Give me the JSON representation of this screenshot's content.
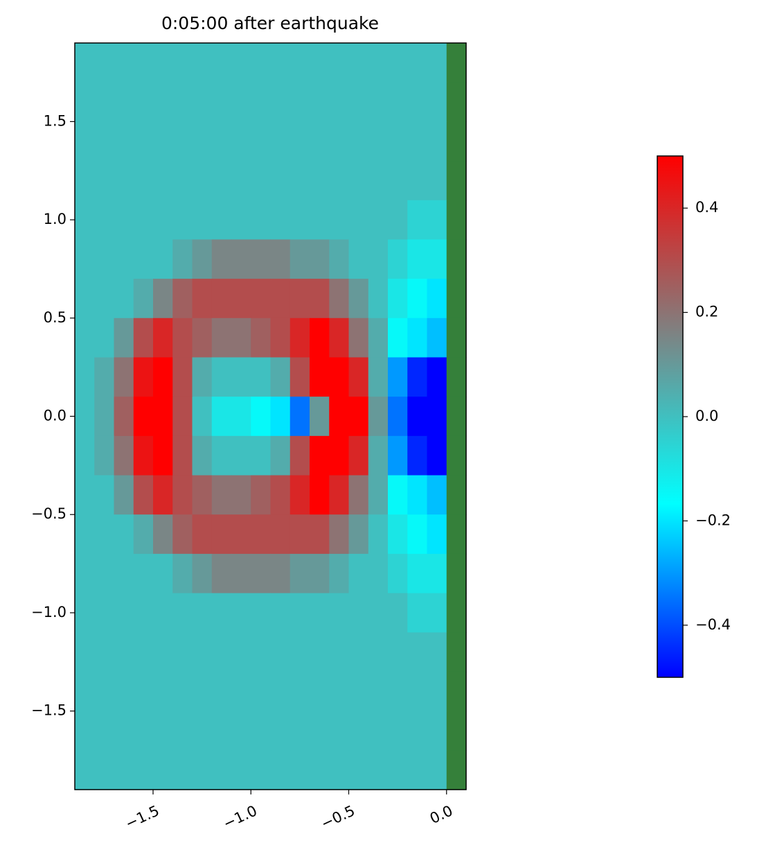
{
  "chart_data": {
    "type": "heatmap",
    "title": "0:05:00 after earthquake",
    "x": [
      -1.85,
      -1.75,
      -1.65,
      -1.55,
      -1.45,
      -1.35,
      -1.25,
      -1.15,
      -1.05,
      -0.95,
      -0.85,
      -0.75,
      -0.65,
      -0.55,
      -0.45,
      -0.35,
      -0.25,
      -0.15,
      -0.05,
      0.05
    ],
    "y": [
      1.8,
      1.6,
      1.4,
      1.2,
      1.0,
      0.8,
      0.6,
      0.4,
      0.2,
      0,
      -0.2,
      -0.4,
      -0.6,
      -0.8,
      -1.0,
      -1.2,
      -1.4,
      -1.6,
      -1.8
    ],
    "z": [
      [
        0,
        0,
        0,
        0,
        0,
        0,
        0,
        0,
        0,
        0,
        0,
        0,
        0,
        0,
        0,
        0,
        0,
        0,
        0,
        null
      ],
      [
        0,
        0,
        0,
        0,
        0,
        0,
        0,
        0,
        0,
        0,
        0,
        0,
        0,
        0,
        0,
        0,
        0,
        0,
        0,
        null
      ],
      [
        0,
        0,
        0,
        0,
        0,
        0,
        0,
        0,
        0,
        0,
        0,
        0,
        0,
        0,
        0,
        0,
        0,
        0,
        0,
        null
      ],
      [
        0,
        0,
        0,
        0,
        0,
        0,
        0,
        0,
        0,
        0,
        0,
        0,
        0,
        0,
        0,
        0,
        0,
        0,
        0,
        null
      ],
      [
        0,
        0,
        0,
        0,
        0,
        0,
        0,
        0,
        0,
        0,
        0,
        0,
        0,
        0,
        0,
        0,
        0,
        -0.05,
        -0.05,
        null
      ],
      [
        0,
        0,
        0,
        0,
        0,
        0.05,
        0.1,
        0.15,
        0.15,
        0.15,
        0.15,
        0.1,
        0.1,
        0.05,
        0,
        0,
        -0.05,
        -0.1,
        -0.1,
        null
      ],
      [
        0,
        0,
        0,
        0.05,
        0.15,
        0.25,
        0.3,
        0.3,
        0.3,
        0.3,
        0.3,
        0.3,
        0.3,
        0.2,
        0.1,
        0,
        -0.1,
        -0.15,
        -0.2,
        null
      ],
      [
        0,
        0,
        0.1,
        0.3,
        0.4,
        0.3,
        0.25,
        0.2,
        0.2,
        0.25,
        0.3,
        0.4,
        0.5,
        0.4,
        0.2,
        0.05,
        -0.15,
        -0.2,
        -0.25,
        null
      ],
      [
        0,
        0.05,
        0.2,
        0.45,
        0.5,
        0.3,
        0.05,
        0,
        0,
        0,
        0.05,
        0.3,
        0.5,
        0.5,
        0.4,
        0.05,
        -0.3,
        -0.45,
        -0.5,
        null
      ],
      [
        0,
        0.05,
        0.25,
        0.5,
        0.5,
        0.3,
        0,
        -0.1,
        -0.1,
        -0.15,
        -0.2,
        -0.35,
        0.1,
        0.5,
        0.5,
        0.1,
        -0.35,
        -0.5,
        -0.5,
        null
      ],
      [
        0,
        0.05,
        0.2,
        0.45,
        0.5,
        0.3,
        0.05,
        0,
        0,
        0,
        0.05,
        0.3,
        0.5,
        0.5,
        0.4,
        0.05,
        -0.3,
        -0.45,
        -0.5,
        null
      ],
      [
        0,
        0,
        0.1,
        0.3,
        0.4,
        0.3,
        0.25,
        0.2,
        0.2,
        0.25,
        0.3,
        0.4,
        0.5,
        0.4,
        0.2,
        0.05,
        -0.15,
        -0.2,
        -0.25,
        null
      ],
      [
        0,
        0,
        0,
        0.05,
        0.15,
        0.25,
        0.3,
        0.3,
        0.3,
        0.3,
        0.3,
        0.3,
        0.3,
        0.2,
        0.1,
        0,
        -0.1,
        -0.15,
        -0.2,
        null
      ],
      [
        0,
        0,
        0,
        0,
        0,
        0.05,
        0.1,
        0.15,
        0.15,
        0.15,
        0.15,
        0.1,
        0.1,
        0.05,
        0,
        0,
        -0.05,
        -0.1,
        -0.1,
        null
      ],
      [
        0,
        0,
        0,
        0,
        0,
        0,
        0,
        0,
        0,
        0,
        0,
        0,
        0,
        0,
        0,
        0,
        0,
        -0.05,
        -0.05,
        null
      ],
      [
        0,
        0,
        0,
        0,
        0,
        0,
        0,
        0,
        0,
        0,
        0,
        0,
        0,
        0,
        0,
        0,
        0,
        0,
        0,
        null
      ],
      [
        0,
        0,
        0,
        0,
        0,
        0,
        0,
        0,
        0,
        0,
        0,
        0,
        0,
        0,
        0,
        0,
        0,
        0,
        0,
        null
      ],
      [
        0,
        0,
        0,
        0,
        0,
        0,
        0,
        0,
        0,
        0,
        0,
        0,
        0,
        0,
        0,
        0,
        0,
        0,
        0,
        null
      ],
      [
        0,
        0,
        0,
        0,
        0,
        0,
        0,
        0,
        0,
        0,
        0,
        0,
        0,
        0,
        0,
        0,
        0,
        0,
        0,
        null
      ]
    ],
    "colormap": [
      "#0000ff",
      "#00ffff",
      "#808080",
      "#ff0000"
    ],
    "null_color": "#35803a",
    "clim": [
      -0.5,
      0.5
    ],
    "cticks": [
      {
        "value": -0.4,
        "label": "−0.4"
      },
      {
        "value": -0.2,
        "label": "−0.2"
      },
      {
        "value": 0,
        "label": "0.0"
      },
      {
        "value": 0.2,
        "label": "0.2"
      },
      {
        "value": 0.4,
        "label": "0.4"
      }
    ],
    "xlim": [
      -1.9,
      0.1
    ],
    "ylim": [
      -1.9,
      1.9
    ],
    "xticks": [
      {
        "value": -1.5,
        "label": "−1.5"
      },
      {
        "value": -1.0,
        "label": "−1.0"
      },
      {
        "value": -0.5,
        "label": "−0.5"
      },
      {
        "value": 0,
        "label": "0.0"
      }
    ],
    "yticks": [
      {
        "value": -1.5,
        "label": "−1.5"
      },
      {
        "value": -1.0,
        "label": "−1.0"
      },
      {
        "value": -0.5,
        "label": "−0.5"
      },
      {
        "value": 0,
        "label": "0.0"
      },
      {
        "value": 0.5,
        "label": "0.5"
      },
      {
        "value": 1.0,
        "label": "1.0"
      },
      {
        "value": 1.5,
        "label": "1.5"
      }
    ]
  }
}
